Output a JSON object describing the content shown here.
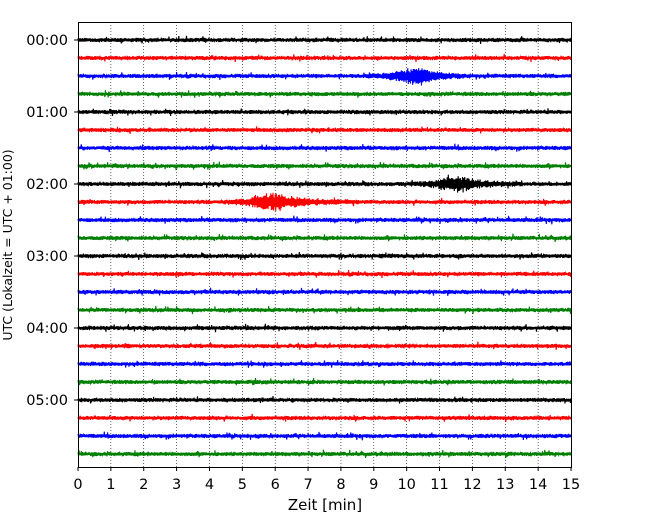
{
  "chart_data": {
    "type": "line",
    "subtype": "helicorder",
    "title": "",
    "xlabel": "Zeit  [min]",
    "ylabel": "UTC (Lokalzeit = UTC + 01:00)",
    "xlim": [
      0,
      15
    ],
    "x_ticks": [
      0,
      1,
      2,
      3,
      4,
      5,
      6,
      7,
      8,
      9,
      10,
      11,
      12,
      13,
      14,
      15
    ],
    "x_grid": "dotted vertical lines at each minute",
    "y_tick_labels": [
      "00:00",
      "01:00",
      "02:00",
      "03:00",
      "04:00",
      "05:00"
    ],
    "trace_interval_min": 15,
    "trace_count": 24,
    "trace_color_cycle": [
      "#000000",
      "#ff0000",
      "#0000ff",
      "#008000"
    ],
    "events": [
      {
        "trace_index": 2,
        "trace_start": "00:30",
        "x_start_min": 8.0,
        "x_peak_min": 10.3,
        "x_end_min": 12.0,
        "relative_amplitude": 0.9
      },
      {
        "trace_index": 8,
        "trace_start": "02:00",
        "x_start_min": 9.3,
        "x_peak_min": 11.6,
        "x_end_min": 13.5,
        "relative_amplitude": 0.8
      },
      {
        "trace_index": 9,
        "trace_start": "02:15",
        "x_start_min": 3.8,
        "x_peak_min": 5.9,
        "x_end_min": 8.5,
        "relative_amplitude": 0.9
      }
    ]
  }
}
